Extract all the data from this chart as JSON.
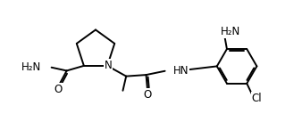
{
  "bg_color": "#ffffff",
  "bond_color": "#000000",
  "label_color": "#000000",
  "fig_width": 3.38,
  "fig_height": 1.55,
  "dpi": 100,
  "xlim": [
    0,
    10
  ],
  "ylim": [
    0,
    5
  ],
  "lw": 1.4
}
